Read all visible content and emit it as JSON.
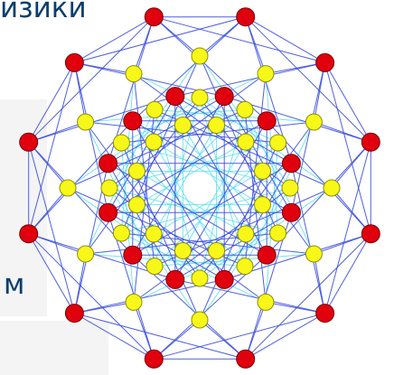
{
  "fragments": {
    "top_text": "изики",
    "left_text": "м"
  },
  "diagram": {
    "outer_red_count": 12,
    "middle_red_count": 12,
    "inner_yellow_count": 12,
    "mid_yellow_count": 12,
    "outer_yellow_count": 12,
    "colors": {
      "red_node": "#e0000e",
      "red_stroke": "#7a0000",
      "yellow_node": "#f7f71a",
      "yellow_stroke": "#8f8f00",
      "edge_blue": "#3b4ee0",
      "edge_cyan": "#59e0f0"
    }
  }
}
